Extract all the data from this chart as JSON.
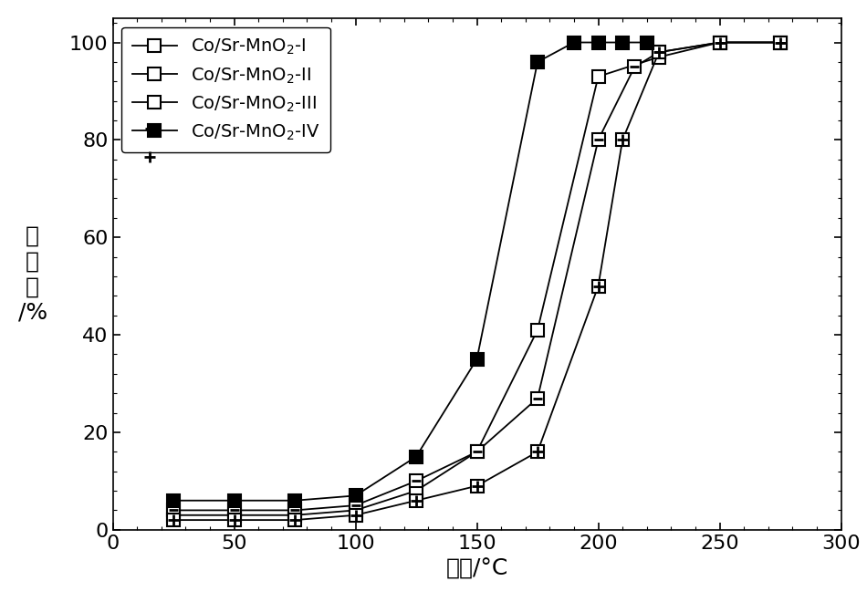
{
  "series": {
    "I": {
      "x": [
        25,
        50,
        75,
        100,
        125,
        150,
        175,
        200,
        225,
        250,
        275
      ],
      "y": [
        3,
        3,
        3,
        4,
        8,
        16,
        41,
        93,
        97,
        100,
        100
      ],
      "label": "Co/Sr-MnO$_2$-I"
    },
    "II": {
      "x": [
        25,
        50,
        75,
        100,
        125,
        150,
        175,
        200,
        215,
        225,
        250,
        275
      ],
      "y": [
        4,
        4,
        4,
        5,
        10,
        16,
        27,
        80,
        95,
        98,
        100,
        100
      ],
      "label": "Co/Sr-MnO$_2$-II"
    },
    "III": {
      "x": [
        25,
        50,
        75,
        100,
        125,
        150,
        175,
        200,
        210,
        225,
        250,
        275
      ],
      "y": [
        2,
        2,
        2,
        3,
        6,
        9,
        16,
        50,
        80,
        98,
        100,
        100
      ],
      "label": "Co/Sr-MnO$_2$-III"
    },
    "IV": {
      "x": [
        25,
        50,
        75,
        100,
        125,
        150,
        175,
        190,
        200,
        210,
        220
      ],
      "y": [
        6,
        6,
        6,
        7,
        15,
        35,
        96,
        100,
        100,
        100,
        100
      ],
      "label": "Co/Sr-MnO$_2$-IV"
    }
  },
  "xlabel": "温度/°C",
  "ylabel": "转化率/%",
  "xlim": [
    20,
    300
  ],
  "ylim": [
    0,
    105
  ],
  "xticks": [
    0,
    50,
    100,
    150,
    200,
    250,
    300
  ],
  "yticks": [
    0,
    20,
    40,
    60,
    80,
    100
  ],
  "figsize": [
    9.5,
    6.6
  ],
  "dpi": 100,
  "background_color": "#ffffff",
  "fontsize_label": 18,
  "fontsize_tick": 16,
  "fontsize_legend": 14,
  "linewidth": 1.3,
  "markersize": 10
}
